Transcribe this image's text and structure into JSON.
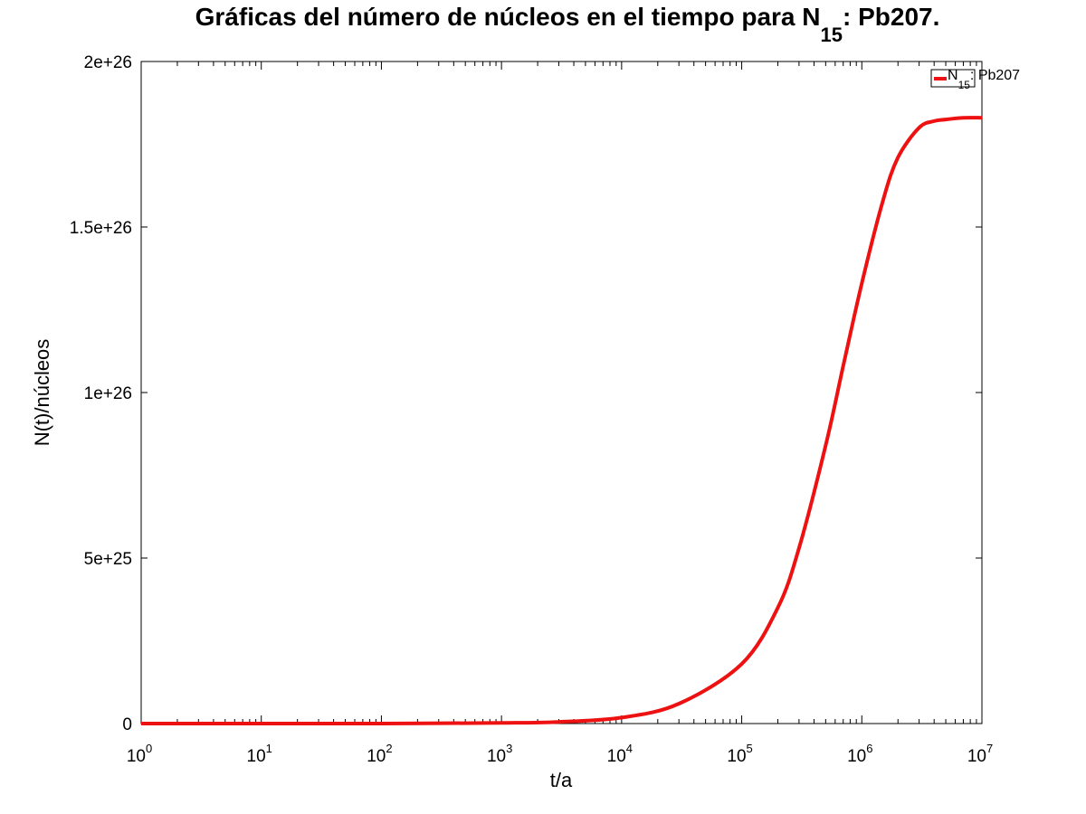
{
  "chart_data": {
    "type": "line",
    "title": {
      "main": "Gráficas del número de núcleos en el tiempo para N",
      "subscript": "15",
      "rest": ": Pb207."
    },
    "xlabel": "t/a",
    "ylabel": "N(t)/núcleos",
    "x_scale": "log",
    "xlim": [
      1,
      10000000
    ],
    "ylim": [
      0,
      2e+26
    ],
    "x_ticks": [
      {
        "base": "10",
        "exp": "0",
        "value": 1
      },
      {
        "base": "10",
        "exp": "1",
        "value": 10
      },
      {
        "base": "10",
        "exp": "2",
        "value": 100
      },
      {
        "base": "10",
        "exp": "3",
        "value": 1000
      },
      {
        "base": "10",
        "exp": "4",
        "value": 10000
      },
      {
        "base": "10",
        "exp": "5",
        "value": 100000
      },
      {
        "base": "10",
        "exp": "6",
        "value": 1000000
      },
      {
        "base": "10",
        "exp": "7",
        "value": 10000000
      }
    ],
    "y_ticks": [
      {
        "label": "0",
        "value": 0
      },
      {
        "label": "5e+25",
        "value": 5e+25
      },
      {
        "label": "1e+26",
        "value": 1e+26
      },
      {
        "label": "1.5e+26",
        "value": 1.5e+26
      },
      {
        "label": "2e+26",
        "value": 2e+26
      }
    ],
    "grid": false,
    "legend": {
      "position": "top-right",
      "entries": [
        {
          "main": "N",
          "subscript": "15",
          "rest": ": Pb207"
        }
      ]
    },
    "series": [
      {
        "color": "#ee1111",
        "x": [
          1,
          10,
          100,
          1000,
          3000,
          10000,
          30000,
          100000,
          200000,
          300000,
          500000,
          700000,
          1000000,
          1500000,
          2000000,
          3000000,
          4000000,
          5000000,
          7000000,
          10000000
        ],
        "y": [
          0,
          1e+21,
          1e+22,
          2e+23,
          5e+23,
          1.8e+24,
          6e+24,
          1.8e+25,
          3.5e+25,
          5.3e+25,
          8.4e+25,
          1.08e+26,
          1.33e+26,
          1.58e+26,
          1.71e+26,
          1.8e+26,
          1.82e+26,
          1.825e+26,
          1.83e+26,
          1.83e+26
        ]
      }
    ]
  }
}
